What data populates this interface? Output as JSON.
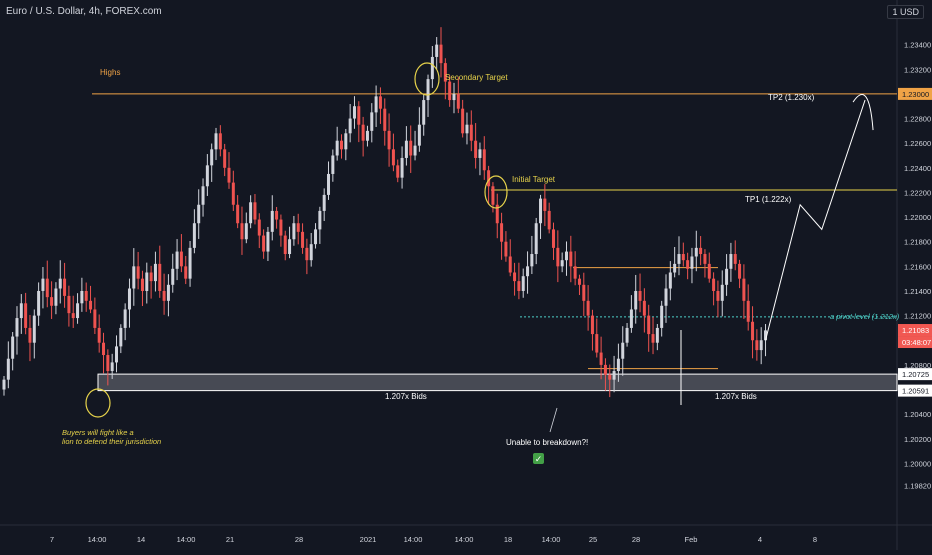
{
  "symbol": "Euro / U.S. Dollar, 4h, FOREX.com",
  "currency_button": "1 USD",
  "colors": {
    "background": "#131722",
    "candle_up": "#d1d4dc",
    "candle_down": "#ef5350",
    "highs_line": "#f0a346",
    "initial_target_line": "#e7d34b",
    "pivot_line": "#4dd0c8",
    "zone_fill": "#cfd2d8",
    "zone_border": "#ffffff",
    "annotation_yellow": "#e7d34b",
    "price_label_red": "#f15852",
    "text": "#d1d4dc"
  },
  "annotations": {
    "highs": "Highs",
    "secondary_target": "Secondary Target",
    "initial_target": "Initial Target",
    "tp2": "TP2 (1.230x)",
    "tp1": "TP1 (1.222x)",
    "pivot": "a pivot level (1.212x)",
    "bids_left": "1.207x Bids",
    "bids_right": "1.207x Bids",
    "buyers_line1": "Buyers will fight like a",
    "buyers_line2": "lion to defend their jurisdiction",
    "unable": "Unable to breakdown?!",
    "check": "✓"
  },
  "price_labels": {
    "highs": "1.23000",
    "current_price": "1.21083",
    "countdown": "03:48:07",
    "zone_top": "1.20725",
    "zone_bottom": "1.20591"
  },
  "chart_data": {
    "type": "candlestick",
    "title": "Euro / U.S. Dollar, 4h, FOREX.com",
    "y_scale_unit": "USD",
    "ylim": [
      1.195,
      1.236
    ],
    "y_ticks": [
      "1.23400",
      "1.23200",
      "1.23000",
      "1.22800",
      "1.22600",
      "1.22400",
      "1.22200",
      "1.22000",
      "1.21800",
      "1.21600",
      "1.21400",
      "1.21200",
      "1.21000",
      "1.20800",
      "1.20600",
      "1.20400",
      "1.20200",
      "1.20000",
      "1.19820"
    ],
    "x_ticks": [
      "7",
      "14:00",
      "14",
      "14:00",
      "21",
      "28",
      "2021",
      "14:00",
      "14:00",
      "18",
      "14:00",
      "25",
      "28",
      "Feb",
      "4",
      "8"
    ],
    "series": [
      {
        "name": "",
        "ohlc_close_path": [
          1.2068,
          1.2085,
          1.2103,
          1.2118,
          1.213,
          1.211,
          1.2098,
          1.212,
          1.214,
          1.215,
          1.2135,
          1.2128,
          1.2142,
          1.215,
          1.2136,
          1.2122,
          1.2118,
          1.213,
          1.214,
          1.2132,
          1.2125,
          1.211,
          1.2098,
          1.2088,
          1.2075,
          1.2082,
          1.2095,
          1.211,
          1.2125,
          1.2142,
          1.216,
          1.215,
          1.214,
          1.2155,
          1.2148,
          1.2162,
          1.214,
          1.2132,
          1.2145,
          1.2158,
          1.2172,
          1.216,
          1.215,
          1.2175,
          1.2195,
          1.221,
          1.2225,
          1.2242,
          1.2255,
          1.2268,
          1.2255,
          1.224,
          1.2228,
          1.221,
          1.2195,
          1.2182,
          1.2195,
          1.2212,
          1.2198,
          1.2185,
          1.2172,
          1.2188,
          1.2205,
          1.2198,
          1.2185,
          1.217,
          1.2182,
          1.2195,
          1.2188,
          1.2175,
          1.2165,
          1.2178,
          1.219,
          1.2205,
          1.2218,
          1.2235,
          1.225,
          1.2262,
          1.2255,
          1.2268,
          1.228,
          1.229,
          1.2275,
          1.2262,
          1.227,
          1.2285,
          1.2298,
          1.2288,
          1.227,
          1.2255,
          1.2242,
          1.2232,
          1.2248,
          1.2262,
          1.225,
          1.2258,
          1.2275,
          1.2295,
          1.2312,
          1.233,
          1.234,
          1.2325,
          1.231,
          1.2295,
          1.23,
          1.2288,
          1.2268,
          1.2275,
          1.2262,
          1.2248,
          1.2255,
          1.2238,
          1.2225,
          1.221,
          1.2195,
          1.218,
          1.2168,
          1.2155,
          1.2148,
          1.214,
          1.2152,
          1.216,
          1.217,
          1.2195,
          1.2215,
          1.2205,
          1.219,
          1.2175,
          1.216,
          1.2165,
          1.2172,
          1.216,
          1.215,
          1.2145,
          1.2132,
          1.212,
          1.2105,
          1.209,
          1.208,
          1.2072,
          1.2068,
          1.2075,
          1.2085,
          1.2098,
          1.211,
          1.2125,
          1.214,
          1.2132,
          1.212,
          1.2105,
          1.2098,
          1.211,
          1.2128,
          1.2142,
          1.2155,
          1.2162,
          1.217,
          1.2165,
          1.2158,
          1.2168,
          1.2175,
          1.217,
          1.2162,
          1.215,
          1.214,
          1.2132,
          1.2145,
          1.2158,
          1.217,
          1.2162,
          1.215,
          1.2132,
          1.2115,
          1.21,
          1.2092,
          1.21,
          1.2108
        ]
      }
    ],
    "levels": [
      {
        "label": "Highs",
        "value": 1.23
      },
      {
        "label": "Initial Target",
        "value": 1.2222
      },
      {
        "label": "a pivot level (1.212x)",
        "value": 1.2119
      },
      {
        "label": "1.207x Bids",
        "value_top": 1.20725,
        "value_bottom": 1.20591
      }
    ],
    "projection": [
      {
        "x_index": 176,
        "value": 1.21
      },
      {
        "x_index": 184,
        "value": 1.221
      },
      {
        "x_index": 189,
        "value": 1.219
      },
      {
        "x_index": 199,
        "value": 1.2295
      }
    ],
    "grid": false,
    "legend": "none"
  }
}
